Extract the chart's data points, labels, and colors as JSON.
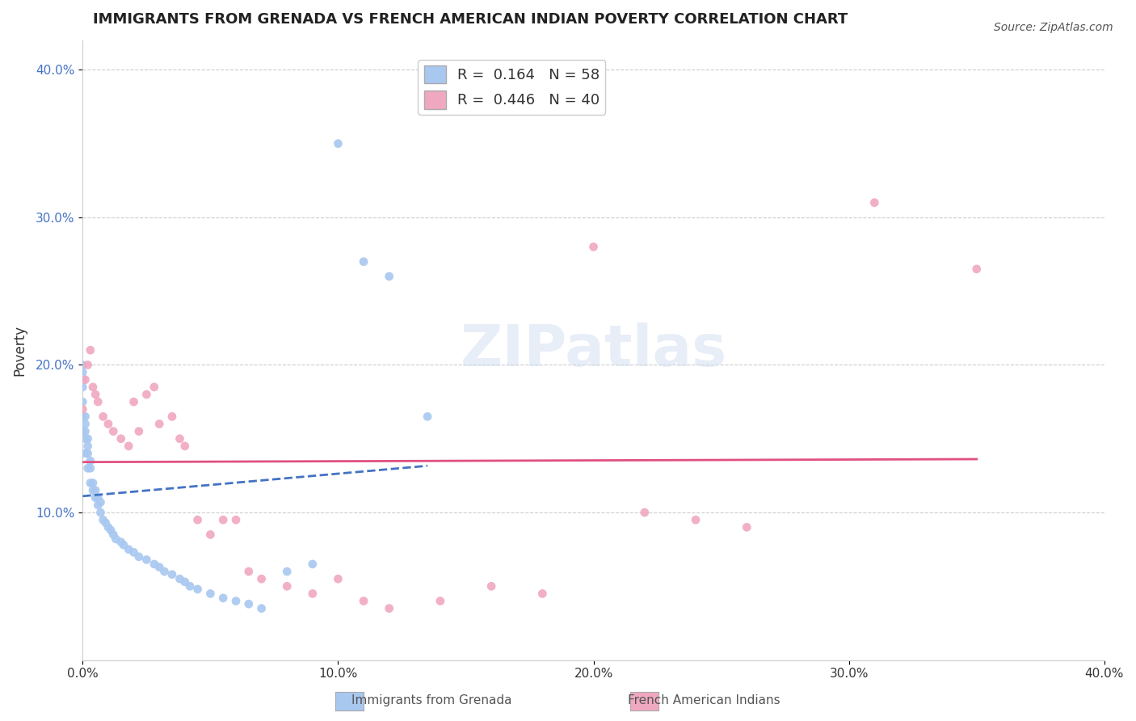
{
  "title": "IMMIGRANTS FROM GRENADA VS FRENCH AMERICAN INDIAN POVERTY CORRELATION CHART",
  "source_text": "Source: ZipAtlas.com",
  "xlabel": "",
  "ylabel": "Poverty",
  "xlim": [
    0.0,
    0.4
  ],
  "ylim": [
    0.0,
    0.42
  ],
  "x_tick_labels": [
    "0.0%",
    "10.0%",
    "20.0%",
    "30.0%",
    "40.0%"
  ],
  "x_tick_vals": [
    0.0,
    0.1,
    0.2,
    0.3,
    0.4
  ],
  "y_tick_labels": [
    "10.0%",
    "20.0%",
    "30.0%",
    "40.0%"
  ],
  "y_tick_vals": [
    0.1,
    0.2,
    0.3,
    0.4
  ],
  "blue_color": "#a8c8f0",
  "pink_color": "#f0a8c0",
  "blue_line_color": "#4472C4",
  "pink_line_color": "#e05080",
  "R_blue": 0.164,
  "N_blue": 58,
  "R_pink": 0.446,
  "N_pink": 40,
  "watermark": "ZIPatlas",
  "blue_points_x": [
    0.0,
    0.0,
    0.0,
    0.0,
    0.0,
    0.0,
    0.0,
    0.001,
    0.001,
    0.001,
    0.001,
    0.001,
    0.002,
    0.002,
    0.002,
    0.002,
    0.003,
    0.003,
    0.003,
    0.004,
    0.004,
    0.005,
    0.005,
    0.006,
    0.006,
    0.007,
    0.007,
    0.008,
    0.009,
    0.01,
    0.011,
    0.012,
    0.013,
    0.015,
    0.016,
    0.018,
    0.02,
    0.022,
    0.025,
    0.028,
    0.03,
    0.032,
    0.035,
    0.038,
    0.04,
    0.042,
    0.045,
    0.05,
    0.055,
    0.06,
    0.065,
    0.07,
    0.08,
    0.09,
    0.1,
    0.11,
    0.12,
    0.135
  ],
  "blue_points_y": [
    0.155,
    0.165,
    0.175,
    0.185,
    0.19,
    0.195,
    0.2,
    0.14,
    0.15,
    0.155,
    0.16,
    0.165,
    0.13,
    0.14,
    0.145,
    0.15,
    0.12,
    0.13,
    0.135,
    0.115,
    0.12,
    0.11,
    0.115,
    0.105,
    0.11,
    0.1,
    0.107,
    0.095,
    0.093,
    0.09,
    0.088,
    0.085,
    0.082,
    0.08,
    0.078,
    0.075,
    0.073,
    0.07,
    0.068,
    0.065,
    0.063,
    0.06,
    0.058,
    0.055,
    0.053,
    0.05,
    0.048,
    0.045,
    0.042,
    0.04,
    0.038,
    0.035,
    0.06,
    0.065,
    0.35,
    0.27,
    0.26,
    0.165
  ],
  "pink_points_x": [
    0.0,
    0.001,
    0.002,
    0.003,
    0.004,
    0.005,
    0.006,
    0.008,
    0.01,
    0.012,
    0.015,
    0.018,
    0.02,
    0.022,
    0.025,
    0.028,
    0.03,
    0.035,
    0.038,
    0.04,
    0.045,
    0.05,
    0.055,
    0.06,
    0.065,
    0.07,
    0.08,
    0.09,
    0.1,
    0.11,
    0.12,
    0.14,
    0.16,
    0.18,
    0.2,
    0.22,
    0.24,
    0.26,
    0.31,
    0.35
  ],
  "pink_points_y": [
    0.17,
    0.19,
    0.2,
    0.21,
    0.185,
    0.18,
    0.175,
    0.165,
    0.16,
    0.155,
    0.15,
    0.145,
    0.175,
    0.155,
    0.18,
    0.185,
    0.16,
    0.165,
    0.15,
    0.145,
    0.095,
    0.085,
    0.095,
    0.095,
    0.06,
    0.055,
    0.05,
    0.045,
    0.055,
    0.04,
    0.035,
    0.04,
    0.05,
    0.045,
    0.28,
    0.1,
    0.095,
    0.09,
    0.31,
    0.265
  ]
}
